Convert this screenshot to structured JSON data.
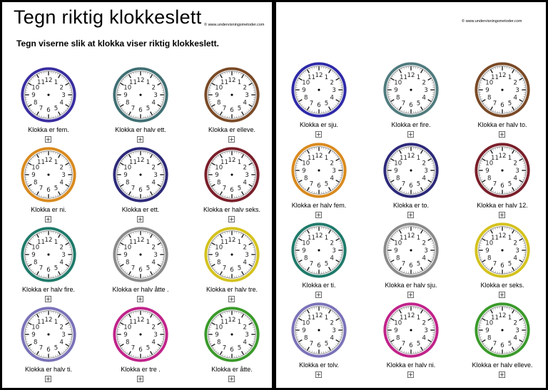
{
  "left_page": {
    "title": "Tegn riktig klokkeslett",
    "copyright": "© www.undervisningsmetoder.com",
    "subtitle": "Tegn viserne slik at klokka viser riktig klokkeslett.",
    "clocks": [
      {
        "label": "Klokka er fem.",
        "color": "#3a2ea0"
      },
      {
        "label": "Klokka er halv ett.",
        "color": "#3f6f73"
      },
      {
        "label": "Klokka er elleve.",
        "color": "#7a4a26"
      },
      {
        "label": "Klokka er ni.",
        "color": "#d98a1e"
      },
      {
        "label": "Klokka er ett.",
        "color": "#2d2a7a"
      },
      {
        "label": "Klokka er halv seks.",
        "color": "#7a1f2a"
      },
      {
        "label": "Klokka er halv fire.",
        "color": "#1f7a6a"
      },
      {
        "label": "Klokka er halv åtte .",
        "color": "#8a8a8a"
      },
      {
        "label": "Klokka er halv tre.",
        "color": "#d4c21e"
      },
      {
        "label": "Klokka er halv ti.",
        "color": "#7a72b8"
      },
      {
        "label": "Klokka er tre .",
        "color": "#c0238a"
      },
      {
        "label": "Klokka er åtte.",
        "color": "#3a9a2a"
      }
    ]
  },
  "right_page": {
    "copyright": "© www.undervisningsmetoder.com",
    "clocks": [
      {
        "label": "Klokka er sju.",
        "color": "#2f2aa8"
      },
      {
        "label": "Klokka er fire.",
        "color": "#4f7b7e"
      },
      {
        "label": "Klokka er halv to.",
        "color": "#7a4a26"
      },
      {
        "label": "Klokka er halv fem.",
        "color": "#d98a1e"
      },
      {
        "label": "Klokka er to.",
        "color": "#2d2a7a"
      },
      {
        "label": "Klokka er halv 12.",
        "color": "#7a1f2a"
      },
      {
        "label": "Klokka er ti.",
        "color": "#1f7a6a"
      },
      {
        "label": "Klokka er halv sju.",
        "color": "#8a8a8a"
      },
      {
        "label": "Klokka er seks.",
        "color": "#d4c21e"
      },
      {
        "label": "Klokka er tolv.",
        "color": "#7a72b8"
      },
      {
        "label": "Klokka er halv ni.",
        "color": "#c0238a"
      },
      {
        "label": "Klokka er halv elleve.",
        "color": "#3a9a2a"
      }
    ]
  },
  "clock_numbers": [
    "12",
    "1",
    "2",
    "3",
    "4",
    "5",
    "6",
    "7",
    "8",
    "9",
    "10",
    "11"
  ],
  "plus_icon": "plus-box-icon"
}
